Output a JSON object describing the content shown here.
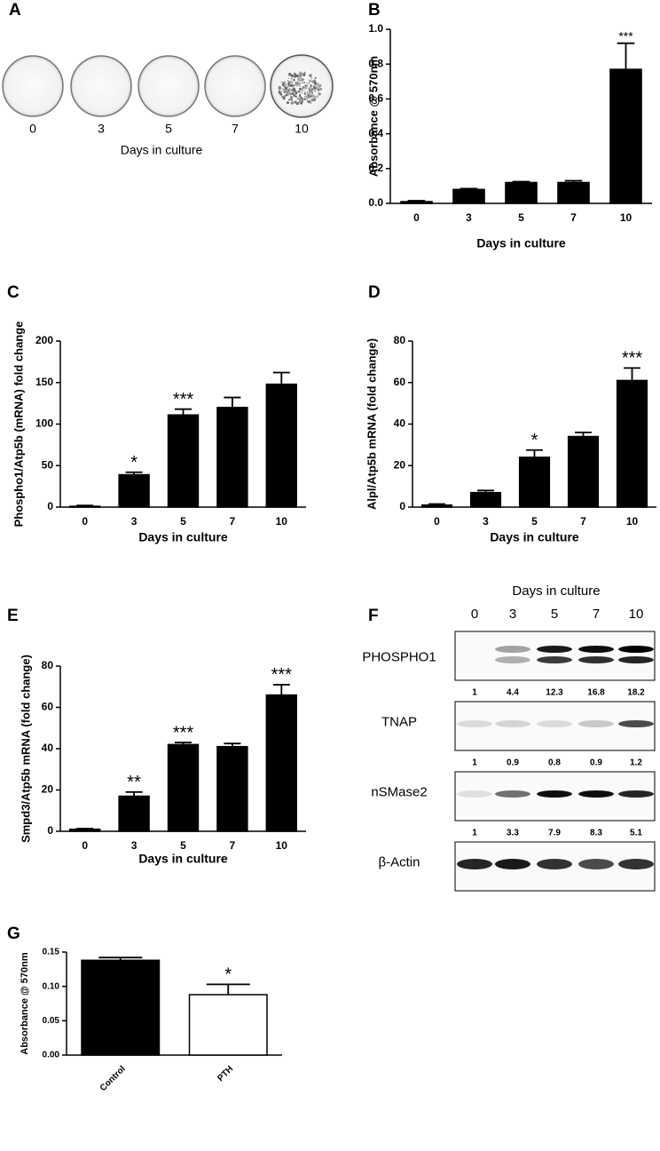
{
  "panel_a": {
    "label": "A",
    "days": [
      "0",
      "3",
      "5",
      "7",
      "10"
    ],
    "xlabel": "Days in culture"
  },
  "panel_f": {
    "label": "F",
    "title": "Days in culture",
    "lanes": [
      "0",
      "3",
      "5",
      "7",
      "10"
    ],
    "blots": [
      {
        "name": "PHOSPHO1",
        "quantification": [
          1,
          4.4,
          12.3,
          16.8,
          18.2
        ]
      },
      {
        "name": "TNAP",
        "quantification": [
          1,
          0.9,
          0.8,
          0.9,
          1.2
        ]
      },
      {
        "name": "nSMase2",
        "quantification": [
          1,
          3.3,
          7.9,
          8.3,
          5.1
        ]
      },
      {
        "name": "β-Actin"
      }
    ]
  },
  "chart_data": [
    {
      "type": "bar",
      "panel_label": "B",
      "ylabel": "Absorbance @ 570nm",
      "xlabel": "Days in culture",
      "categories": [
        "0",
        "3",
        "5",
        "7",
        "10"
      ],
      "values": [
        0.01,
        0.08,
        0.12,
        0.12,
        0.77
      ],
      "errors": [
        0.005,
        0.005,
        0.005,
        0.01,
        0.15
      ],
      "significance": [
        null,
        null,
        null,
        null,
        "***"
      ],
      "color": "#000000",
      "ylim": [
        0,
        1.0
      ],
      "yticks": [
        {
          "value": 0,
          "label": "0.0"
        },
        {
          "value": 0.2,
          "label": "0.2"
        },
        {
          "value": 0.4,
          "label": "0.4"
        },
        {
          "value": 0.6,
          "label": "0.6"
        },
        {
          "value": 0.8,
          "label": "0.8"
        },
        {
          "value": 1.0,
          "label": "1.0"
        }
      ]
    },
    {
      "type": "bar",
      "panel_label": "C",
      "ylabel": "Phospho1/Atp5b (mRNA) fold change",
      "xlabel": "Days in culture",
      "categories": [
        "0",
        "3",
        "5",
        "7",
        "10"
      ],
      "values": [
        1,
        39,
        111,
        120,
        148
      ],
      "errors": [
        1,
        3,
        7,
        12,
        14
      ],
      "significance": [
        null,
        "*",
        "***",
        null,
        null
      ],
      "color": "#000000",
      "ylim": [
        0,
        200
      ],
      "yticks": [
        0,
        50,
        100,
        150,
        200
      ]
    },
    {
      "type": "bar",
      "panel_label": "D",
      "ylabel": "Alpl/Atp5b mRNA (fold change)",
      "xlabel": "Days in culture",
      "categories": [
        "0",
        "3",
        "5",
        "7",
        "10"
      ],
      "values": [
        1,
        7,
        24,
        34,
        61
      ],
      "errors": [
        0.5,
        1,
        3.5,
        2,
        6
      ],
      "significance": [
        null,
        null,
        "*",
        null,
        "***"
      ],
      "color": "#000000",
      "ylim": [
        0,
        80
      ],
      "yticks": [
        0,
        20,
        40,
        60,
        80
      ]
    },
    {
      "type": "bar",
      "panel_label": "E",
      "ylabel": "Smpd3/Atp5b mRNA (fold change)",
      "xlabel": "Days in culture",
      "categories": [
        "0",
        "3",
        "5",
        "7",
        "10"
      ],
      "values": [
        1,
        17,
        42,
        41,
        66
      ],
      "errors": [
        0.3,
        2,
        1,
        1.5,
        5
      ],
      "significance": [
        null,
        "**",
        "***",
        null,
        "***"
      ],
      "color": "#000000",
      "ylim": [
        0,
        80
      ],
      "yticks": [
        0,
        20,
        40,
        60,
        80
      ]
    },
    {
      "type": "bar",
      "panel_label": "G",
      "ylabel": "Absorbance @ 570nm",
      "categories": [
        "Control",
        "PTH"
      ],
      "values": [
        0.138,
        0.088
      ],
      "errors": [
        0.004,
        0.015
      ],
      "significance": [
        null,
        "*"
      ],
      "colors": [
        "#000000",
        "#ffffff"
      ],
      "ylim": [
        0,
        0.15
      ],
      "yticks": [
        {
          "value": 0,
          "label": "0.00"
        },
        {
          "value": 0.05,
          "label": "0.05"
        },
        {
          "value": 0.1,
          "label": "0.10"
        },
        {
          "value": 0.15,
          "label": "0.15"
        }
      ]
    }
  ]
}
